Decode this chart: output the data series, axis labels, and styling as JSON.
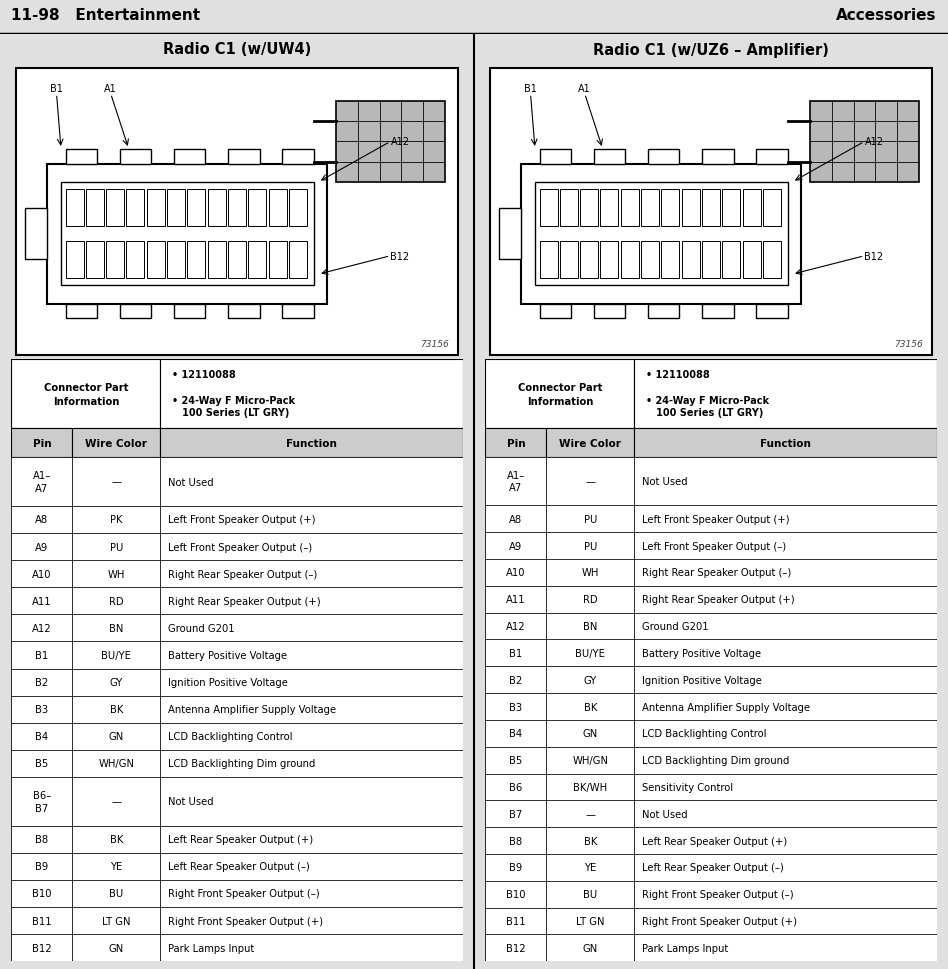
{
  "header_left": "11-98   Entertainment",
  "header_right": "Accessories",
  "title_left": "Radio C1 (w/UW4)",
  "title_right": "Radio C1 (w/UZ6 – Amplifier)",
  "col_headers": [
    "Pin",
    "Wire Color",
    "Function"
  ],
  "left_rows": [
    [
      "A1–\nA7",
      "—",
      "Not Used"
    ],
    [
      "A8",
      "PK",
      "Left Front Speaker Output (+)"
    ],
    [
      "A9",
      "PU",
      "Left Front Speaker Output (–)"
    ],
    [
      "A10",
      "WH",
      "Right Rear Speaker Output (–)"
    ],
    [
      "A11",
      "RD",
      "Right Rear Speaker Output (+)"
    ],
    [
      "A12",
      "BN",
      "Ground G201"
    ],
    [
      "B1",
      "BU/YE",
      "Battery Positive Voltage"
    ],
    [
      "B2",
      "GY",
      "Ignition Positive Voltage"
    ],
    [
      "B3",
      "BK",
      "Antenna Amplifier Supply Voltage"
    ],
    [
      "B4",
      "GN",
      "LCD Backlighting Control"
    ],
    [
      "B5",
      "WH/GN",
      "LCD Backlighting Dim ground"
    ],
    [
      "B6–\nB7",
      "—",
      "Not Used"
    ],
    [
      "B8",
      "BK",
      "Left Rear Speaker Output (+)"
    ],
    [
      "B9",
      "YE",
      "Left Rear Speaker Output (–)"
    ],
    [
      "B10",
      "BU",
      "Right Front Speaker Output (–)"
    ],
    [
      "B11",
      "LT GN",
      "Right Front Speaker Output (+)"
    ],
    [
      "B12",
      "GN",
      "Park Lamps Input"
    ]
  ],
  "right_rows": [
    [
      "A1–\nA7",
      "—",
      "Not Used"
    ],
    [
      "A8",
      "PU",
      "Left Front Speaker Output (+)"
    ],
    [
      "A9",
      "PU",
      "Left Front Speaker Output (–)"
    ],
    [
      "A10",
      "WH",
      "Right Rear Speaker Output (–)"
    ],
    [
      "A11",
      "RD",
      "Right Rear Speaker Output (+)"
    ],
    [
      "A12",
      "BN",
      "Ground G201"
    ],
    [
      "B1",
      "BU/YE",
      "Battery Positive Voltage"
    ],
    [
      "B2",
      "GY",
      "Ignition Positive Voltage"
    ],
    [
      "B3",
      "BK",
      "Antenna Amplifier Supply Voltage"
    ],
    [
      "B4",
      "GN",
      "LCD Backlighting Control"
    ],
    [
      "B5",
      "WH/GN",
      "LCD Backlighting Dim ground"
    ],
    [
      "B6",
      "BK/WH",
      "Sensitivity Control"
    ],
    [
      "B7",
      "—",
      "Not Used"
    ],
    [
      "B8",
      "BK",
      "Left Rear Speaker Output (+)"
    ],
    [
      "B9",
      "YE",
      "Left Rear Speaker Output (–)"
    ],
    [
      "B10",
      "BU",
      "Right Front Speaker Output (–)"
    ],
    [
      "B11",
      "LT GN",
      "Right Front Speaker Output (+)"
    ],
    [
      "B12",
      "GN",
      "Park Lamps Input"
    ]
  ],
  "bg_color": "#e0e0e0",
  "figure_number": "73156"
}
